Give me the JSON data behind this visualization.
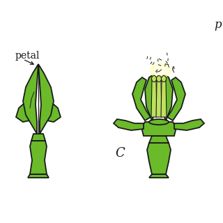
{
  "background_color": "#ffffff",
  "green_fill": "#6aba2a",
  "green_light": "#8ed040",
  "green_pale": "#c0e060",
  "yellow_glow": "#ffffcc",
  "black": "#1a1a1a",
  "label_petal": "petal",
  "label_c": "C",
  "label_p": "p",
  "label_fontsize": 10,
  "label_c_fontsize": 13,
  "label_p_fontsize": 12
}
